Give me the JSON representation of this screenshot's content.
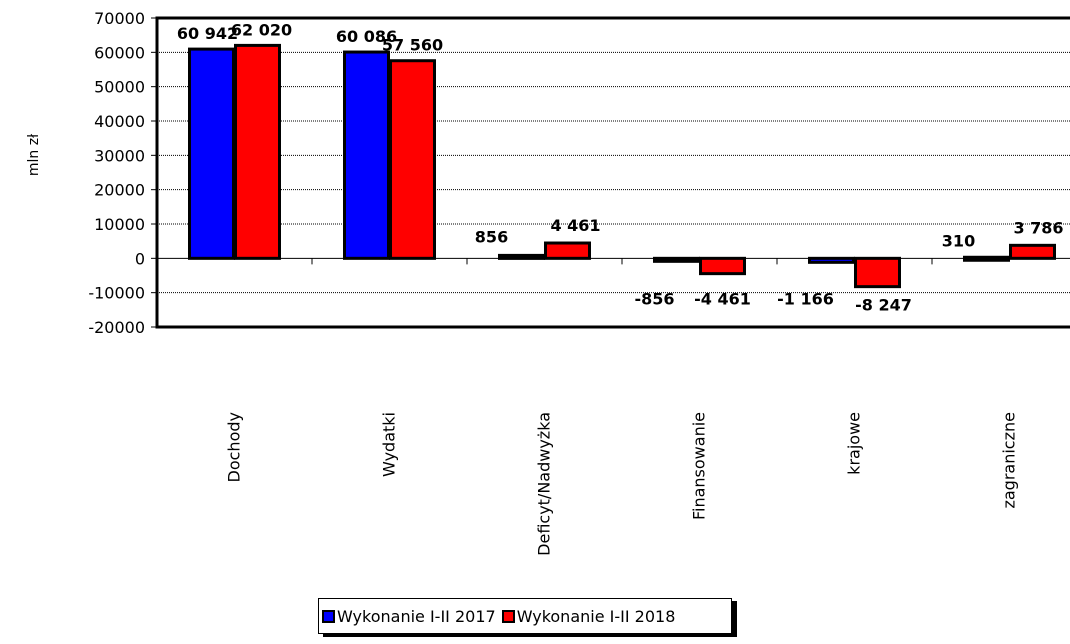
{
  "chart_data": {
    "type": "bar",
    "ylabel": "mln zł",
    "ylim": [
      -20000,
      70000
    ],
    "yticks": [
      70000,
      60000,
      50000,
      40000,
      30000,
      20000,
      10000,
      0,
      -10000,
      -20000
    ],
    "ytick_labels": [
      "70000",
      "60000",
      "50000",
      "40000",
      "30000",
      "20000",
      "10000",
      "0",
      "-10000",
      "-20000"
    ],
    "categories": [
      "Dochody",
      "Wydatki",
      "Deficyt/Nadwyżka",
      "Finansowanie",
      "krajowe",
      "zagraniczne"
    ],
    "grid": true,
    "legend_position": "bottom",
    "series": [
      {
        "name": "Wykonanie I-II 2017",
        "color": "#0000ff",
        "values": [
          60942,
          60086,
          856,
          -856,
          -1166,
          310
        ],
        "labels": [
          "60 942",
          "60 086",
          "856",
          "-856",
          "-1 166",
          "310"
        ]
      },
      {
        "name": "Wykonanie I-II 2018",
        "color": "#ff0000",
        "values": [
          62020,
          57560,
          4461,
          -4461,
          -8247,
          3786
        ],
        "labels": [
          "62 020",
          "57 560",
          "4 461",
          "-4 461",
          "-8 247",
          "3 786"
        ]
      }
    ]
  }
}
